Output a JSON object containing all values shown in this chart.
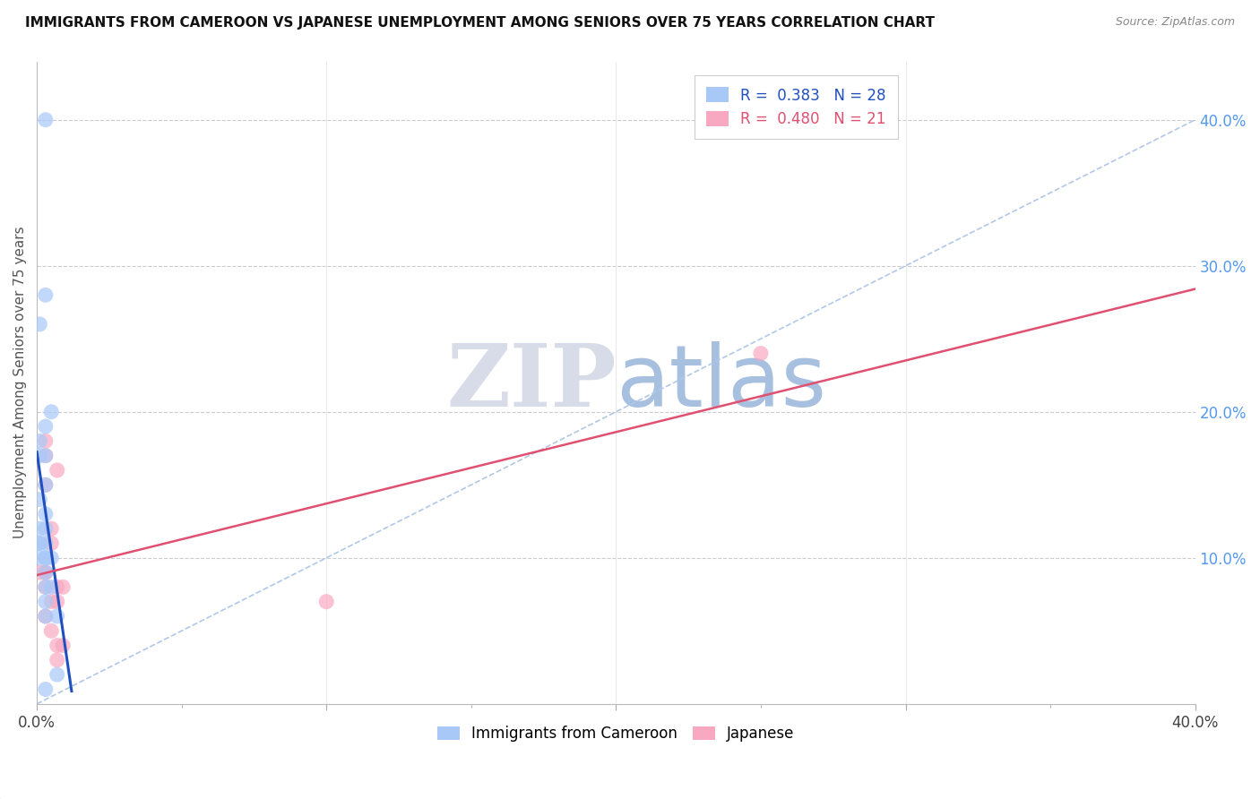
{
  "title": "IMMIGRANTS FROM CAMEROON VS JAPANESE UNEMPLOYMENT AMONG SENIORS OVER 75 YEARS CORRELATION CHART",
  "source": "Source: ZipAtlas.com",
  "ylabel": "Unemployment Among Seniors over 75 years",
  "legend_cameroon": "Immigrants from Cameroon",
  "legend_japanese": "Japanese",
  "R_cameroon": 0.383,
  "N_cameroon": 28,
  "R_japanese": 0.48,
  "N_japanese": 21,
  "color_cameroon": "#A8C8F8",
  "color_japanese": "#F8A8C0",
  "color_trendline_cameroon": "#2050C0",
  "color_trendline_japanese": "#E05070",
  "color_dashed_line": "#B0C8E8",
  "background_color": "#FFFFFF",
  "watermark_zip": "ZIP",
  "watermark_atlas": "atlas",
  "watermark_color_zip": "#D8DCE8",
  "watermark_color_atlas": "#A8C0E0",
  "cameroon_x": [
    0.003,
    0.003,
    0.001,
    0.005,
    0.003,
    0.001,
    0.001,
    0.003,
    0.003,
    0.001,
    0.003,
    0.003,
    0.001,
    0.001,
    0.003,
    0.001,
    0.005,
    0.003,
    0.001,
    0.003,
    0.003,
    0.005,
    0.003,
    0.003,
    0.003,
    0.007,
    0.007,
    0.003
  ],
  "cameroon_y": [
    0.4,
    0.28,
    0.26,
    0.2,
    0.19,
    0.18,
    0.17,
    0.17,
    0.15,
    0.14,
    0.13,
    0.12,
    0.12,
    0.11,
    0.11,
    0.11,
    0.1,
    0.1,
    0.1,
    0.1,
    0.09,
    0.08,
    0.08,
    0.07,
    0.06,
    0.06,
    0.02,
    0.01
  ],
  "japanese_x": [
    0.001,
    0.003,
    0.003,
    0.003,
    0.003,
    0.003,
    0.003,
    0.003,
    0.005,
    0.005,
    0.005,
    0.005,
    0.007,
    0.007,
    0.007,
    0.007,
    0.009,
    0.009,
    0.25,
    0.1,
    0.007
  ],
  "japanese_y": [
    0.09,
    0.09,
    0.18,
    0.17,
    0.15,
    0.09,
    0.08,
    0.06,
    0.12,
    0.11,
    0.07,
    0.05,
    0.16,
    0.08,
    0.07,
    0.04,
    0.08,
    0.04,
    0.24,
    0.07,
    0.03
  ],
  "trendline_cam_x0": 0.0,
  "trendline_cam_y0": 0.135,
  "trendline_cam_x1": 0.4,
  "trendline_cam_y1": 0.4,
  "trendline_jap_x0": 0.0,
  "trendline_jap_y0": 0.085,
  "trendline_jap_x1": 0.4,
  "trendline_jap_y1": 0.215,
  "xlim": [
    0.0,
    0.4
  ],
  "ylim": [
    0.0,
    0.44
  ],
  "right_ytick_vals": [
    0.1,
    0.2,
    0.3,
    0.4
  ],
  "right_ytick_labels": [
    "10.0%",
    "20.0%",
    "30.0%",
    "40.0%"
  ]
}
